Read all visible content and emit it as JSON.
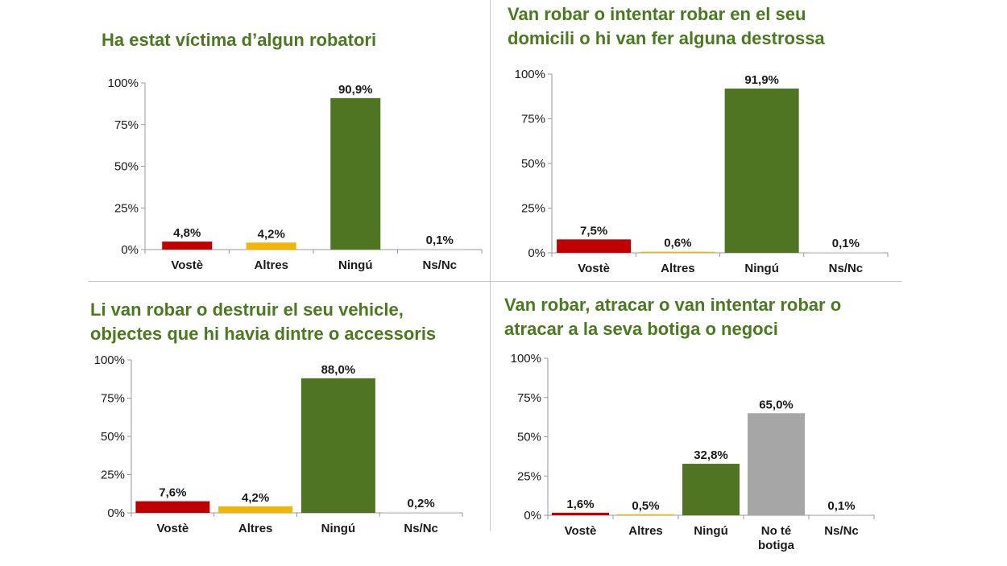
{
  "colors": {
    "title": "#4a7a1f",
    "axis": "#9a9a9a",
    "label": "#1a1a1a"
  },
  "chart_data": [
    {
      "type": "bar",
      "title": "Ha estat víctima d’algun robatori",
      "categories": [
        "Vostè",
        "Altres",
        "Ningú",
        "Ns/Nc"
      ],
      "values": [
        4.8,
        4.2,
        90.9,
        0.1
      ],
      "value_labels": [
        "4,8%",
        "4,2%",
        "90,9%",
        "0,1%"
      ],
      "colors": [
        "#c00000",
        "#f2b600",
        "#4f7523",
        "#d9d9d9"
      ],
      "ylim": [
        0,
        100
      ],
      "yticks": [
        "0%",
        "25%",
        "50%",
        "75%",
        "100%"
      ],
      "xlabel": "",
      "ylabel": "",
      "grid": false,
      "legend": "none"
    },
    {
      "type": "bar",
      "title": "Van robar o intentar robar en el seu\ndomicili o hi van fer alguna destrossa",
      "categories": [
        "Vostè",
        "Altres",
        "Ningú",
        "Ns/Nc"
      ],
      "values": [
        7.5,
        0.6,
        91.9,
        0.1
      ],
      "value_labels": [
        "7,5%",
        "0,6%",
        "91,9%",
        "0,1%"
      ],
      "colors": [
        "#c00000",
        "#f2b600",
        "#4f7523",
        "#d9d9d9"
      ],
      "ylim": [
        0,
        100
      ],
      "yticks": [
        "0%",
        "25%",
        "50%",
        "75%",
        "100%"
      ],
      "xlabel": "",
      "ylabel": "",
      "grid": false,
      "legend": "none"
    },
    {
      "type": "bar",
      "title": "Li van robar o destruir el seu vehicle,\nobjectes que hi havia dintre o accessoris",
      "categories": [
        "Vostè",
        "Altres",
        "Ningú",
        "Ns/Nc"
      ],
      "values": [
        7.6,
        4.2,
        88.0,
        0.2
      ],
      "value_labels": [
        "7,6%",
        "4,2%",
        "88,0%",
        "0,2%"
      ],
      "colors": [
        "#c00000",
        "#f2b600",
        "#4f7523",
        "#d9d9d9"
      ],
      "ylim": [
        0,
        100
      ],
      "yticks": [
        "0%",
        "25%",
        "50%",
        "75%",
        "100%"
      ],
      "xlabel": "",
      "ylabel": "",
      "grid": false,
      "legend": "none"
    },
    {
      "type": "bar",
      "title": "Van robar, atracar o van intentar robar  o\natracar a la seva botiga o negoci",
      "categories": [
        "Vostè",
        "Altres",
        "Ningú",
        "No té\nbotiga",
        "Ns/Nc"
      ],
      "values": [
        1.6,
        0.5,
        32.8,
        65.0,
        0.1
      ],
      "value_labels": [
        "1,6%",
        "0,5%",
        "32,8%",
        "65,0%",
        "0,1%"
      ],
      "colors": [
        "#c00000",
        "#f2b600",
        "#4f7523",
        "#a6a6a6",
        "#d9d9d9"
      ],
      "ylim": [
        0,
        100
      ],
      "yticks": [
        "0%",
        "25%",
        "50%",
        "75%",
        "100%"
      ],
      "xlabel": "",
      "ylabel": "",
      "grid": false,
      "legend": "none"
    }
  ]
}
